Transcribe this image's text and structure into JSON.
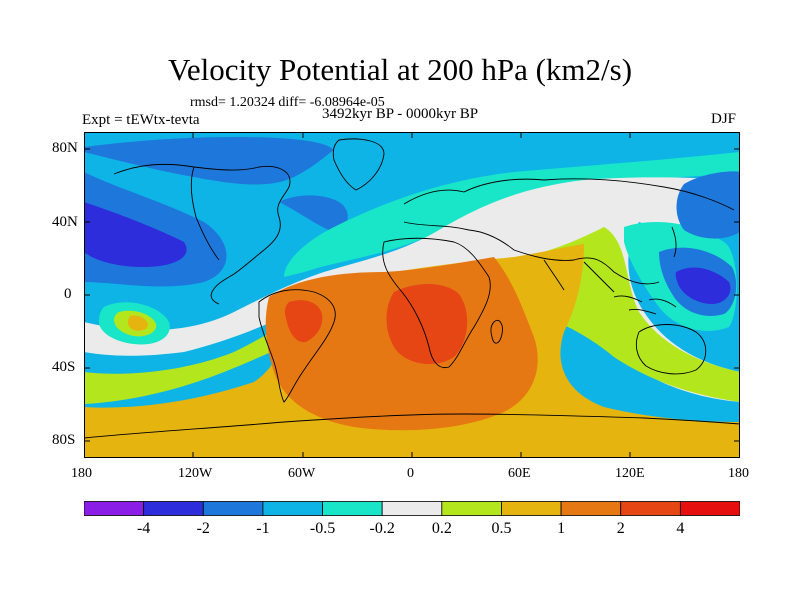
{
  "header": {
    "title": "Velocity Potential at 200 hPa (km2/s)",
    "stats": "rmsd= 1.20324 diff= -6.08964e-05",
    "experiment": "Expt = tEWtx-tevta",
    "period": "3492kyr BP - 0000kyr BP",
    "season": "DJF"
  },
  "map": {
    "y_axis_labels": [
      "80N",
      "40N",
      "0",
      "40S",
      "80S"
    ],
    "x_axis_labels": [
      "180",
      "120W",
      "60W",
      "0",
      "60E",
      "120E",
      "180"
    ]
  },
  "colorbar": {
    "labels": [
      "-4",
      "-2",
      "-1",
      "-0.5",
      "-0.2",
      "0.2",
      "0.5",
      "1",
      "2",
      "4"
    ],
    "colors": [
      "#8b1ee6",
      "#2d2ddc",
      "#1e78dc",
      "#0fb4e6",
      "#19e6c8",
      "#ebebeb",
      "#b4e61e",
      "#e6b40f",
      "#e67814",
      "#e64614",
      "#e60f0f"
    ]
  },
  "colors": {
    "ocean_neutral": "#ebebeb",
    "coastline": "#000000"
  }
}
